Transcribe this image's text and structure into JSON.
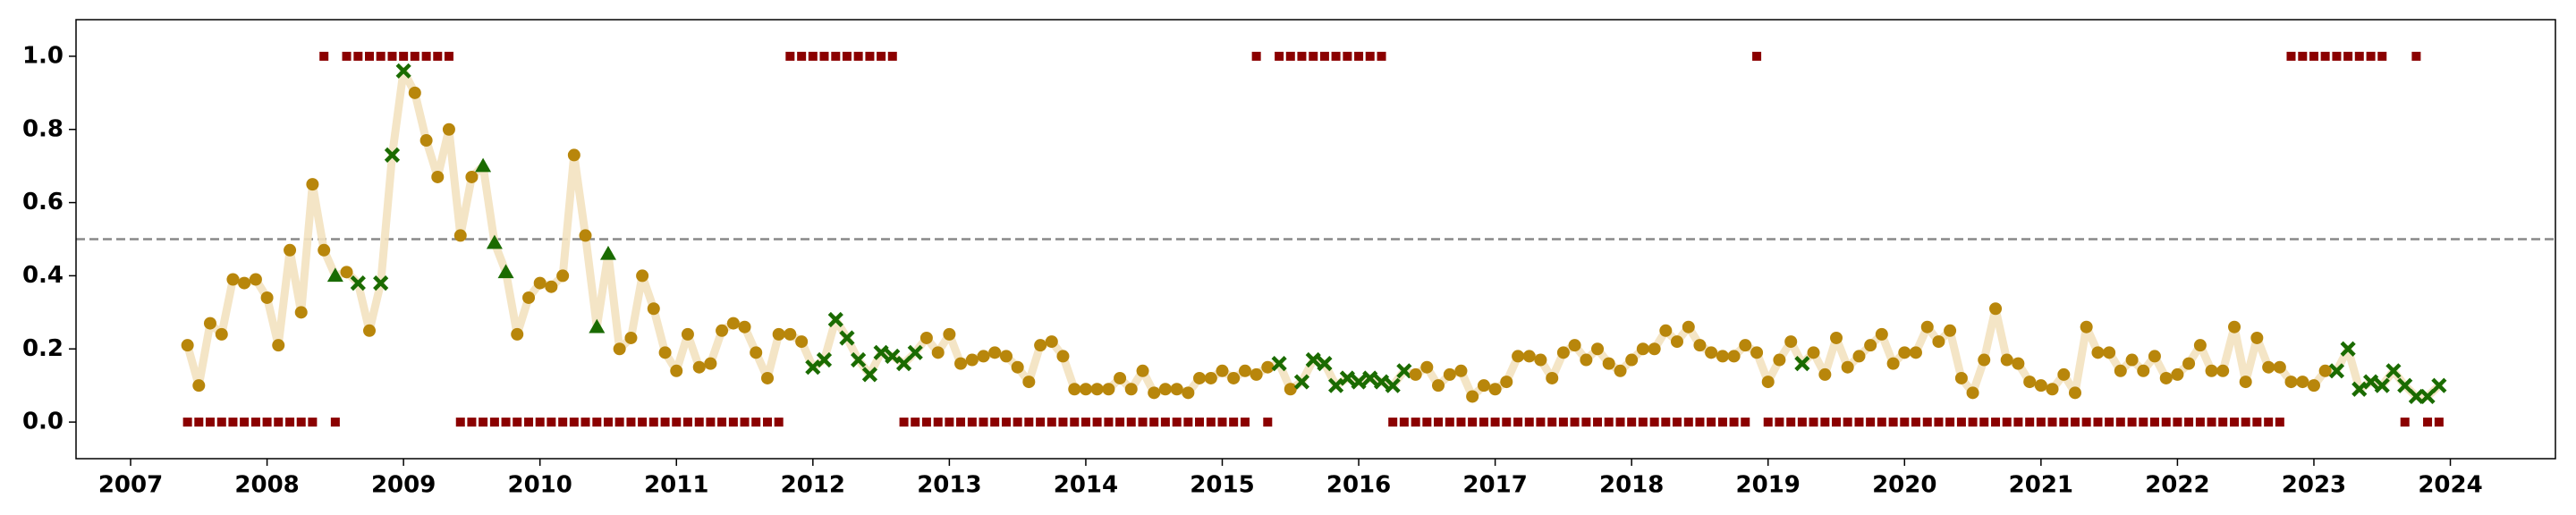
{
  "chart_data": {
    "type": "line",
    "x": [
      2007.417,
      2007.5,
      2007.583,
      2007.667,
      2007.75,
      2007.833,
      2007.917,
      2008.0,
      2008.083,
      2008.167,
      2008.25,
      2008.333,
      2008.417,
      2008.5,
      2008.583,
      2008.667,
      2008.75,
      2008.833,
      2008.917,
      2009.0,
      2009.083,
      2009.167,
      2009.25,
      2009.333,
      2009.417,
      2009.5,
      2009.583,
      2009.667,
      2009.75,
      2009.833,
      2009.917,
      2010.0,
      2010.083,
      2010.167,
      2010.25,
      2010.333,
      2010.417,
      2010.5,
      2010.583,
      2010.667,
      2010.75,
      2010.833,
      2010.917,
      2011.0,
      2011.083,
      2011.167,
      2011.25,
      2011.333,
      2011.417,
      2011.5,
      2011.583,
      2011.667,
      2011.75,
      2011.833,
      2011.917,
      2012.0,
      2012.083,
      2012.167,
      2012.25,
      2012.333,
      2012.417,
      2012.5,
      2012.583,
      2012.667,
      2012.75,
      2012.833,
      2012.917,
      2013.0,
      2013.083,
      2013.167,
      2013.25,
      2013.333,
      2013.417,
      2013.5,
      2013.583,
      2013.667,
      2013.75,
      2013.833,
      2013.917,
      2014.0,
      2014.083,
      2014.167,
      2014.25,
      2014.333,
      2014.417,
      2014.5,
      2014.583,
      2014.667,
      2014.75,
      2014.833,
      2014.917,
      2015.0,
      2015.083,
      2015.167,
      2015.25,
      2015.333,
      2015.417,
      2015.5,
      2015.583,
      2015.667,
      2015.75,
      2015.833,
      2015.917,
      2016.0,
      2016.083,
      2016.167,
      2016.25,
      2016.333,
      2016.417,
      2016.5,
      2016.583,
      2016.667,
      2016.75,
      2016.833,
      2016.917,
      2017.0,
      2017.083,
      2017.167,
      2017.25,
      2017.333,
      2017.417,
      2017.5,
      2017.583,
      2017.667,
      2017.75,
      2017.833,
      2017.917,
      2018.0,
      2018.083,
      2018.167,
      2018.25,
      2018.333,
      2018.417,
      2018.5,
      2018.583,
      2018.667,
      2018.75,
      2018.833,
      2018.917,
      2019.0,
      2019.083,
      2019.167,
      2019.25,
      2019.333,
      2019.417,
      2019.5,
      2019.583,
      2019.667,
      2019.75,
      2019.833,
      2019.917,
      2020.0,
      2020.083,
      2020.167,
      2020.25,
      2020.333,
      2020.417,
      2020.5,
      2020.583,
      2020.667,
      2020.75,
      2020.833,
      2020.917,
      2021.0,
      2021.083,
      2021.167,
      2021.25,
      2021.333,
      2021.417,
      2021.5,
      2021.583,
      2021.667,
      2021.75,
      2021.833,
      2021.917,
      2022.0,
      2022.083,
      2022.167,
      2022.25,
      2022.333,
      2022.417,
      2022.5,
      2022.583,
      2022.667,
      2022.75,
      2022.833,
      2022.917,
      2023.0,
      2023.083,
      2023.167,
      2023.25,
      2023.333,
      2023.417,
      2023.5,
      2023.583,
      2023.667,
      2023.75,
      2023.833,
      2023.917
    ],
    "series": [
      {
        "color": "#b8860b",
        "line_color": "#f3e2c0",
        "marker_colors": {
          "o": "#b8860b",
          "x": "#1a6b00",
          "^": "#1a6b00"
        },
        "markers": "ooooooooooooo^oxoxxxoooooo^^^ooooooo^^oooooooooooooooooxxxxxxxxxxoooooooooooooooooooooooooooooooxoxxxxxxxxxxooooooooooooooooooooooooooooooooooxooooooooooooooooooooooooooooooooooooooooooooooxxxxxxxxxxoxoo",
        "values": [
          0.21,
          0.1,
          0.27,
          0.24,
          0.39,
          0.38,
          0.39,
          0.34,
          0.21,
          0.47,
          0.3,
          0.65,
          0.47,
          0.4,
          0.41,
          0.38,
          0.25,
          0.38,
          0.73,
          0.96,
          0.9,
          0.77,
          0.67,
          0.8,
          0.51,
          0.67,
          0.7,
          0.49,
          0.41,
          0.24,
          0.34,
          0.38,
          0.37,
          0.4,
          0.73,
          0.51,
          0.26,
          0.46,
          0.2,
          0.23,
          0.4,
          0.31,
          0.19,
          0.14,
          0.24,
          0.15,
          0.16,
          0.25,
          0.27,
          0.26,
          0.19,
          0.12,
          0.24,
          0.24,
          0.22,
          0.15,
          0.17,
          0.28,
          0.23,
          0.17,
          0.13,
          0.19,
          0.18,
          0.16,
          0.19,
          0.23,
          0.19,
          0.24,
          0.16,
          0.17,
          0.18,
          0.19,
          0.18,
          0.15,
          0.11,
          0.21,
          0.22,
          0.18,
          0.09,
          0.09,
          0.09,
          0.09,
          0.12,
          0.09,
          0.14,
          0.08,
          0.09,
          0.09,
          0.08,
          0.12,
          0.12,
          0.14,
          0.12,
          0.14,
          0.13,
          0.15,
          0.16,
          0.09,
          0.11,
          0.17,
          0.16,
          0.1,
          0.12,
          0.11,
          0.12,
          0.11,
          0.1,
          0.14,
          0.13,
          0.15,
          0.1,
          0.13,
          0.14,
          0.07,
          0.1,
          0.09,
          0.11,
          0.18,
          0.18,
          0.17,
          0.12,
          0.19,
          0.21,
          0.17,
          0.2,
          0.16,
          0.14,
          0.17,
          0.2,
          0.2,
          0.25,
          0.22,
          0.26,
          0.21,
          0.19,
          0.18,
          0.18,
          0.21,
          0.19,
          0.11,
          0.17,
          0.22,
          0.16,
          0.19,
          0.13,
          0.23,
          0.15,
          0.18,
          0.21,
          0.24,
          0.16,
          0.19,
          0.19,
          0.26,
          0.22,
          0.25,
          0.12,
          0.08,
          0.17,
          0.31,
          0.17,
          0.16,
          0.11,
          0.1,
          0.09,
          0.13,
          0.08,
          0.26,
          0.19,
          0.19,
          0.14,
          0.17,
          0.14,
          0.18,
          0.12,
          0.13,
          0.16,
          0.21,
          0.14,
          0.14,
          0.26,
          0.11,
          0.23,
          0.15,
          0.15,
          0.11,
          0.11,
          0.1,
          0.14,
          0.14,
          0.2,
          0.09,
          0.11,
          0.1,
          0.14,
          0.1,
          0.07,
          0.07,
          0.1
        ]
      },
      {
        "type": "scatter",
        "color": "#8b0000",
        "values": [
          0,
          0,
          0,
          0,
          0,
          0,
          0,
          0,
          0,
          0,
          0,
          0,
          1,
          0,
          1,
          1,
          1,
          1,
          1,
          1,
          1,
          1,
          1,
          1,
          0,
          0,
          0,
          0,
          0,
          0,
          0,
          0,
          0,
          0,
          0,
          0,
          0,
          0,
          0,
          0,
          0,
          0,
          0,
          0,
          0,
          0,
          0,
          0,
          0,
          0,
          0,
          0,
          0,
          1,
          1,
          1,
          1,
          1,
          1,
          1,
          1,
          1,
          1,
          0,
          0,
          0,
          0,
          0,
          0,
          0,
          0,
          0,
          0,
          0,
          0,
          0,
          0,
          0,
          0,
          0,
          0,
          0,
          0,
          0,
          0,
          0,
          0,
          0,
          0,
          0,
          0,
          0,
          0,
          0,
          1,
          0,
          1,
          1,
          1,
          1,
          1,
          1,
          1,
          1,
          1,
          1,
          0,
          0,
          0,
          0,
          0,
          0,
          0,
          0,
          0,
          0,
          0,
          0,
          0,
          0,
          0,
          0,
          0,
          0,
          0,
          0,
          0,
          0,
          0,
          0,
          0,
          0,
          0,
          0,
          0,
          0,
          0,
          0,
          1,
          0,
          0,
          0,
          0,
          0,
          0,
          0,
          0,
          0,
          0,
          0,
          0,
          0,
          0,
          0,
          0,
          0,
          0,
          0,
          0,
          0,
          0,
          0,
          0,
          0,
          0,
          0,
          0,
          0,
          0,
          0,
          0,
          0,
          0,
          0,
          0,
          0,
          0,
          0,
          0,
          0,
          0,
          0,
          0,
          0,
          0,
          1,
          1,
          1,
          1,
          1,
          1,
          1,
          1,
          1,
          null,
          0,
          1,
          0,
          0
        ]
      }
    ],
    "hline": 0.5,
    "xlim": [
      2006.6,
      2024.77
    ],
    "ylim": [
      -0.1,
      1.1
    ],
    "xticks": [
      2007,
      2008,
      2009,
      2010,
      2011,
      2012,
      2013,
      2014,
      2015,
      2016,
      2017,
      2018,
      2019,
      2020,
      2021,
      2022,
      2023,
      2024
    ],
    "yticks": [
      {
        "value": 0,
        "label": "0.0"
      },
      0.2,
      0.4,
      0.6,
      0.8,
      {
        "value": 1,
        "label": "1.0"
      }
    ]
  }
}
